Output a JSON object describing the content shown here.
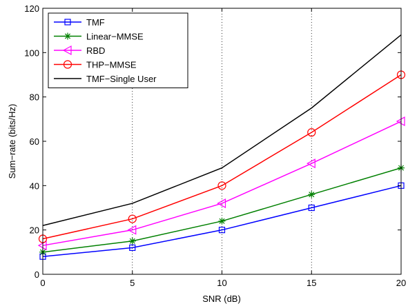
{
  "chart_data": {
    "type": "line",
    "title": "",
    "xlabel": "SNR (dB)",
    "ylabel": "Sum−rate (bits/Hz)",
    "xlim": [
      0,
      20
    ],
    "ylim": [
      0,
      120
    ],
    "xticks": [
      0,
      5,
      10,
      15,
      20
    ],
    "yticks": [
      0,
      20,
      40,
      60,
      80,
      100,
      120
    ],
    "xtick_labels": [
      "0",
      "5",
      "10",
      "15",
      "20"
    ],
    "ytick_labels": [
      "0",
      "20",
      "40",
      "60",
      "80",
      "100",
      "120"
    ],
    "grid": "vertical dotted lines at x ticks",
    "legend_position": "top-left",
    "x": [
      0,
      5,
      10,
      15,
      20
    ],
    "series": [
      {
        "name": "TMF",
        "values": [
          8,
          12,
          20,
          30,
          40
        ],
        "color": "#0000ff",
        "marker": "square"
      },
      {
        "name": "Linear−MMSE",
        "values": [
          10,
          15,
          24,
          36,
          48
        ],
        "color": "#008000",
        "marker": "star"
      },
      {
        "name": "RBD",
        "values": [
          13,
          20,
          32,
          50,
          69
        ],
        "color": "#ff00ff",
        "marker": "triangle-left"
      },
      {
        "name": "THP−MMSE",
        "values": [
          16,
          25,
          40,
          64,
          90
        ],
        "color": "#ff0000",
        "marker": "circle"
      },
      {
        "name": "TMF−Single User",
        "values": [
          22,
          32,
          48,
          75,
          108
        ],
        "color": "#000000",
        "marker": "none"
      }
    ]
  }
}
